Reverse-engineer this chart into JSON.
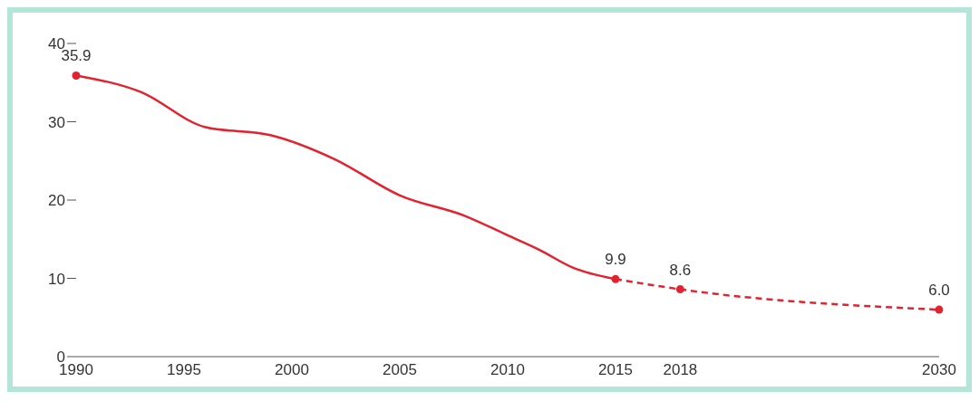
{
  "chart_data": {
    "type": "line",
    "series": [
      {
        "color": "#e2232f",
        "line_style": "solid",
        "marker": "none",
        "x": [
          1990,
          1993,
          1996,
          1999,
          2002,
          2005,
          2008,
          2010,
          2011.5,
          2013,
          2015
        ],
        "values": [
          35.9,
          33.8,
          29.3,
          28.3,
          25.2,
          20.6,
          18.0,
          15.5,
          13.6,
          11.4,
          9.9
        ]
      },
      {
        "color": "#e2232f",
        "line_style": "dashed",
        "marker": "none",
        "x": [
          2015,
          2018,
          2030
        ],
        "values": [
          9.9,
          8.6,
          6.0
        ]
      },
      {
        "type": "scatter",
        "color": "#e2232f",
        "marker": "circle",
        "x": [
          1990,
          2015,
          2018,
          2030
        ],
        "values": [
          35.9,
          9.9,
          8.6,
          6.0
        ],
        "value_labels": [
          "35.9",
          "9.9",
          "8.6",
          "6.0"
        ]
      }
    ],
    "xlim": [
      1990,
      2030
    ],
    "xticks": [
      1990,
      1995,
      2000,
      2005,
      2010,
      2015,
      2018,
      2030
    ],
    "ylim": [
      0,
      40
    ],
    "yticks": [
      0,
      10,
      20,
      30,
      40
    ],
    "grid": false,
    "legend": false
  }
}
